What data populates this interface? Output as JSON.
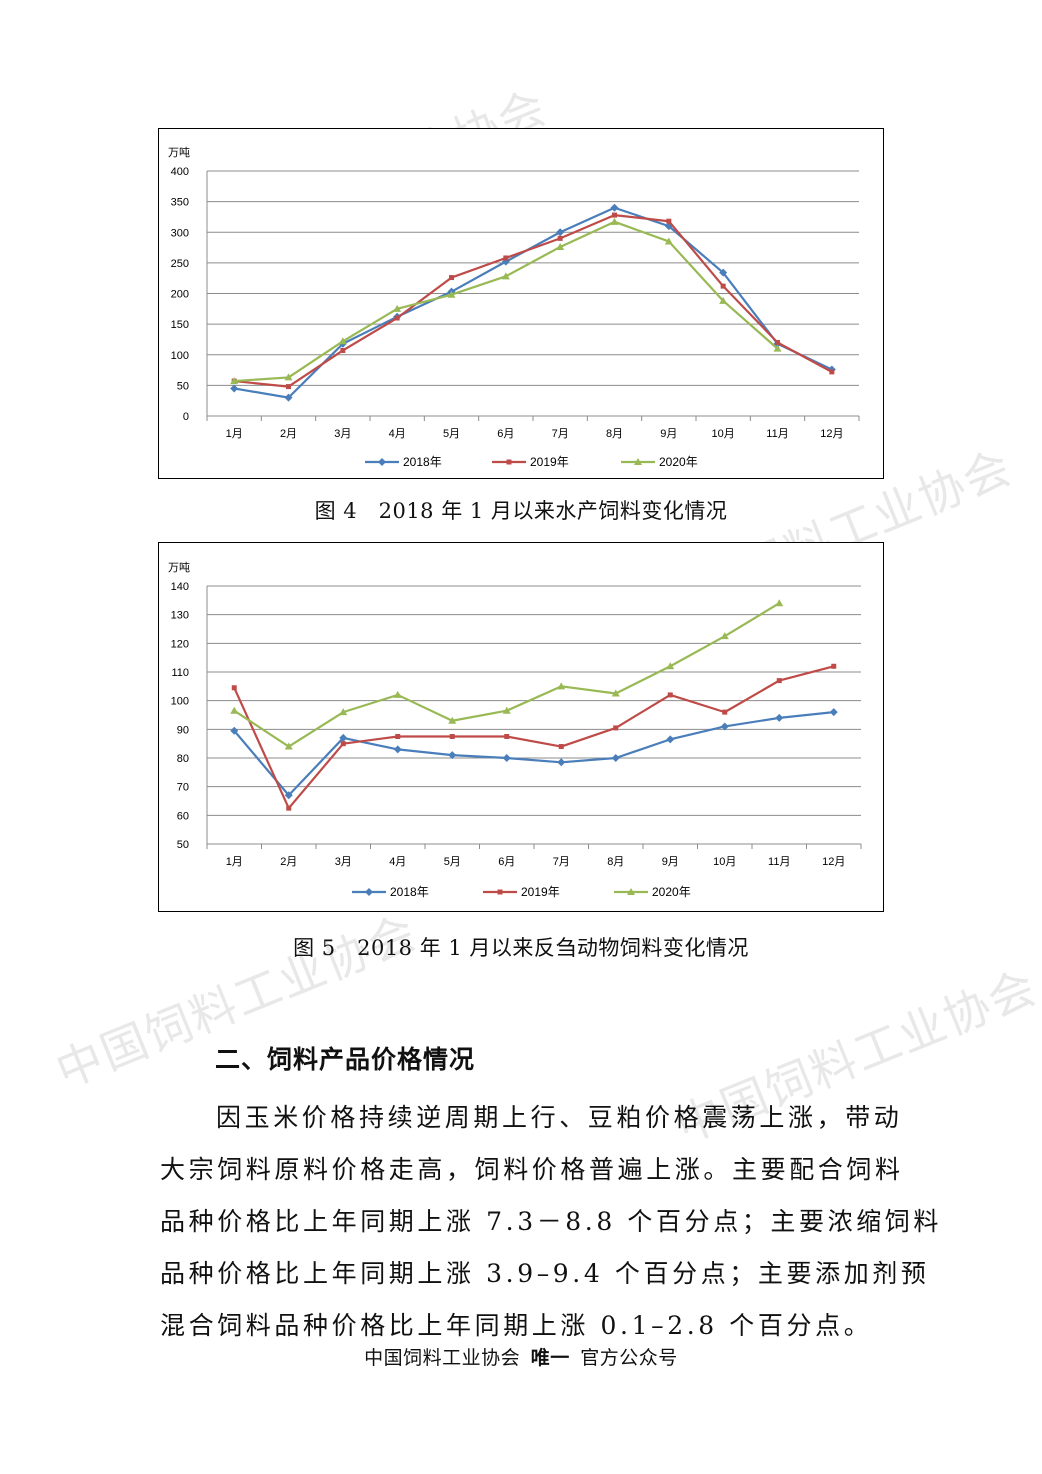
{
  "charts": [
    {
      "id": "chart1",
      "chart_data": {
        "type": "line",
        "title": "",
        "ylabel": "万吨",
        "ylim": [
          0,
          400
        ],
        "yticks": [
          0,
          50,
          100,
          150,
          200,
          250,
          300,
          350,
          400
        ],
        "categories": [
          "1月",
          "2月",
          "3月",
          "4月",
          "5月",
          "6月",
          "7月",
          "8月",
          "9月",
          "10月",
          "11月",
          "12月"
        ],
        "grid": true,
        "legend": "bottom",
        "series": [
          {
            "name": "2018年",
            "color": "#4a7ebb",
            "marker": "diamond",
            "values": [
              45,
              30,
              118,
              162,
              203,
              252,
              300,
              340,
              310,
              234,
              118,
              76
            ]
          },
          {
            "name": "2019年",
            "color": "#be4b48",
            "marker": "square",
            "values": [
              57,
              48,
              107,
              160,
              226,
              258,
              290,
              328,
              318,
              212,
              120,
              72
            ]
          },
          {
            "name": "2020年",
            "color": "#98b954",
            "marker": "triangle",
            "values": [
              57,
              63,
              122,
              175,
              198,
              228,
              276,
              317,
              285,
              188,
              110,
              null
            ]
          }
        ]
      }
    },
    {
      "id": "chart2",
      "chart_data": {
        "type": "line",
        "title": "",
        "ylabel": "万吨",
        "ylim": [
          50,
          140
        ],
        "yticks": [
          50,
          60,
          70,
          80,
          90,
          100,
          110,
          120,
          130,
          140
        ],
        "categories": [
          "1月",
          "2月",
          "3月",
          "4月",
          "5月",
          "6月",
          "7月",
          "8月",
          "9月",
          "10月",
          "11月",
          "12月"
        ],
        "grid": true,
        "legend": "bottom",
        "series": [
          {
            "name": "2018年",
            "color": "#4a7ebb",
            "marker": "diamond",
            "values": [
              89.5,
              67,
              87,
              83,
              81,
              80,
              78.5,
              80,
              86.5,
              91,
              94,
              96
            ]
          },
          {
            "name": "2019年",
            "color": "#be4b48",
            "marker": "square",
            "values": [
              104.5,
              62.5,
              85,
              87.5,
              87.5,
              87.5,
              84,
              90.5,
              102,
              96,
              107,
              112
            ]
          },
          {
            "name": "2020年",
            "color": "#98b954",
            "marker": "triangle",
            "values": [
              96.5,
              84,
              96,
              102,
              93,
              96.5,
              105,
              102.5,
              112,
              122.5,
              134,
              null
            ]
          }
        ]
      }
    }
  ],
  "captions": {
    "fig4": "图 4　2018 年 1 月以来水产饲料变化情况",
    "fig5": "图 5　2018 年 1 月以来反刍动物饲料变化情况"
  },
  "section": {
    "heading": "二、饲料产品价格情况",
    "lines": [
      "因玉米价格持续逆周期上行、豆粕价格震荡上涨，带动",
      "大宗饲料原料价格走高，饲料价格普遍上涨。主要配合饲料",
      "品种价格比上年同期上涨 7.3－8.8 个百分点；主要浓缩饲料",
      "品种价格比上年同期上涨  3.9–9.4 个百分点；主要添加剂预",
      "混合饲料品种价格比上年同期上涨 0.1–2.8 个百分点。"
    ]
  },
  "footer": {
    "org": "中国饲料工业协会",
    "emphasis": "唯一",
    "suffix": "官方公众号"
  },
  "watermark": {
    "text": "中国饲料工业协会"
  }
}
